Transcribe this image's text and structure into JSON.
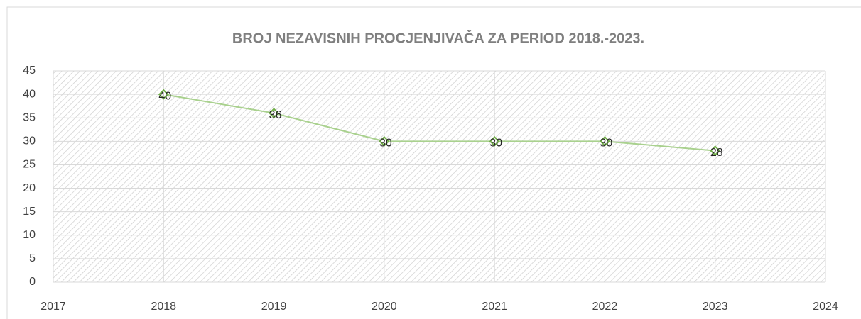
{
  "chart_data": {
    "type": "line",
    "title": "BROJ NEZAVISNIH PROCJENJIVAČA ZA PERIOD 2018.-2023.",
    "x": [
      2018,
      2019,
      2020,
      2021,
      2022,
      2023
    ],
    "values": [
      40,
      36,
      30,
      30,
      30,
      28
    ],
    "color": "#a9d18e",
    "marker_color": "#70ad47",
    "xlim": [
      2017,
      2024
    ],
    "xticks": [
      2017,
      2018,
      2019,
      2020,
      2021,
      2022,
      2023,
      2024
    ],
    "ylim": [
      0,
      45
    ],
    "yticks": [
      0,
      5,
      10,
      15,
      20,
      25,
      30,
      35,
      40,
      45
    ],
    "grid": true
  }
}
